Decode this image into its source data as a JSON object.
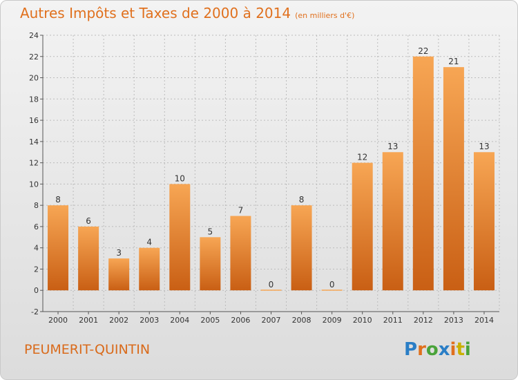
{
  "title": "Autres Impôts et Taxes de 2000 à 2014",
  "subtitle": "(en milliers d'€)",
  "commune": "PEUMERIT-QUINTIN",
  "logo": {
    "letters": [
      "P",
      "r",
      "o",
      "x",
      "i",
      "t",
      "i"
    ],
    "colors": [
      "#2a7ec6",
      "#e0701d",
      "#4aa33a",
      "#2a7ec6",
      "#e0701d",
      "#c9b000",
      "#4aa33a"
    ]
  },
  "colors": {
    "bar_top": "#f7a654",
    "bar_bottom": "#c95f14",
    "axis": "#555555",
    "grid": "#bbbbbb"
  },
  "chart_data": {
    "type": "bar",
    "title": "Autres Impôts et Taxes de 2000 à 2014",
    "subtitle": "(en milliers d'€)",
    "categories": [
      "2000",
      "2001",
      "2002",
      "2003",
      "2004",
      "2005",
      "2006",
      "2007",
      "2008",
      "2009",
      "2010",
      "2011",
      "2012",
      "2013",
      "2014"
    ],
    "values": [
      8,
      6,
      3,
      4,
      10,
      5,
      7,
      0,
      8,
      0,
      12,
      13,
      22,
      21,
      13
    ],
    "ylim": [
      -2,
      24
    ],
    "yticks": [
      -2,
      0,
      2,
      4,
      6,
      8,
      10,
      12,
      14,
      16,
      18,
      20,
      22,
      24
    ],
    "grid": true
  }
}
